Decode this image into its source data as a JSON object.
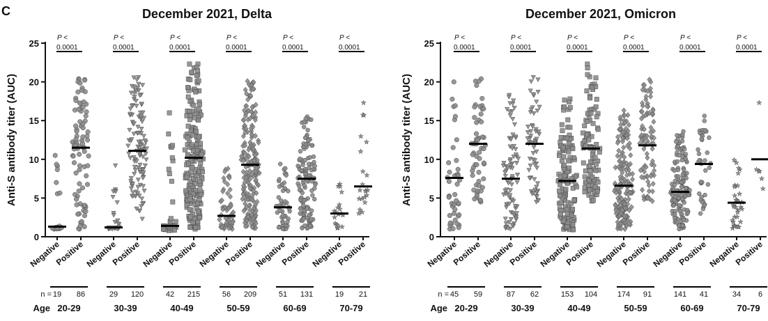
{
  "panel_letter": "C",
  "chart_data": [
    {
      "type": "scatter",
      "title": "December 2021, Delta",
      "ylabel": "Anti-S antibody titer (AUC)",
      "ylim": [
        0,
        25
      ],
      "yticks": [
        "0",
        "5",
        "10",
        "15",
        "20",
        "25"
      ],
      "categories": [
        "Negative",
        "Positive"
      ],
      "n_label": "n =",
      "age_label": "Age",
      "groups": [
        {
          "age": "20-29",
          "n": [
            "19",
            "86"
          ],
          "p_label": "P <",
          "p_value": "0.0001",
          "marker": "circle",
          "neg": {
            "min": 1.0,
            "max": 10.5,
            "median": 1.3,
            "count": 19
          },
          "pos": {
            "min": 1.0,
            "max": 20.4,
            "median": 11.5,
            "count": 86
          }
        },
        {
          "age": "30-39",
          "n": [
            "29",
            "120"
          ],
          "p_label": "P <",
          "p_value": "0.0001",
          "marker": "triangle-down",
          "neg": {
            "min": 1.0,
            "max": 9.2,
            "median": 1.2,
            "count": 29
          },
          "pos": {
            "min": 2.3,
            "max": 20.6,
            "median": 11.1,
            "count": 120
          }
        },
        {
          "age": "40-49",
          "n": [
            "42",
            "215"
          ],
          "p_label": "P <",
          "p_value": "0.0001",
          "marker": "square",
          "neg": {
            "min": 0.8,
            "max": 16.0,
            "median": 1.4,
            "count": 42
          },
          "pos": {
            "min": 1.0,
            "max": 22.3,
            "median": 10.2,
            "count": 215
          }
        },
        {
          "age": "50-59",
          "n": [
            "56",
            "209"
          ],
          "p_label": "P <",
          "p_value": "0.0001",
          "marker": "diamond",
          "neg": {
            "min": 1.0,
            "max": 8.8,
            "median": 2.7,
            "count": 56
          },
          "pos": {
            "min": 1.1,
            "max": 20.1,
            "median": 9.3,
            "count": 209
          }
        },
        {
          "age": "60-69",
          "n": [
            "51",
            "131"
          ],
          "p_label": "P <",
          "p_value": "0.0001",
          "marker": "hexagon",
          "neg": {
            "min": 1.0,
            "max": 9.4,
            "median": 3.8,
            "count": 51
          },
          "pos": {
            "min": 1.1,
            "max": 15.5,
            "median": 7.5,
            "count": 131
          }
        },
        {
          "age": "70-79",
          "n": [
            "19",
            "21"
          ],
          "p_label": "P <",
          "p_value": "0.0001",
          "marker": "star",
          "neg": {
            "min": 1.1,
            "max": 6.8,
            "median": 3.0,
            "count": 19
          },
          "pos": {
            "min": 3.0,
            "max": 17.3,
            "median": 6.5,
            "count": 21
          }
        }
      ]
    },
    {
      "type": "scatter",
      "title": "December 2021, Omicron",
      "ylabel": "Anti-S antibody titer (AUC)",
      "ylim": [
        0,
        25
      ],
      "yticks": [
        "0",
        "5",
        "10",
        "15",
        "20",
        "25"
      ],
      "categories": [
        "Negative",
        "Positive"
      ],
      "n_label": "n =",
      "age_label": "Age",
      "groups": [
        {
          "age": "20-29",
          "n": [
            "45",
            "59"
          ],
          "p_label": "P <",
          "p_value": "0.0001",
          "marker": "circle",
          "neg": {
            "min": 1.0,
            "max": 20.0,
            "median": 7.6,
            "count": 45
          },
          "pos": {
            "min": 4.5,
            "max": 20.4,
            "median": 12.0,
            "count": 59
          }
        },
        {
          "age": "30-39",
          "n": [
            "87",
            "62"
          ],
          "p_label": "P <",
          "p_value": "0.0001",
          "marker": "triangle-down",
          "neg": {
            "min": 1.0,
            "max": 18.3,
            "median": 7.5,
            "count": 87
          },
          "pos": {
            "min": 4.5,
            "max": 20.6,
            "median": 12.0,
            "count": 62
          }
        },
        {
          "age": "40-49",
          "n": [
            "153",
            "104"
          ],
          "p_label": "P <",
          "p_value": "0.0001",
          "marker": "square",
          "neg": {
            "min": 0.9,
            "max": 17.8,
            "median": 7.2,
            "count": 153
          },
          "pos": {
            "min": 4.6,
            "max": 22.3,
            "median": 11.4,
            "count": 104
          }
        },
        {
          "age": "50-59",
          "n": [
            "174",
            "91"
          ],
          "p_label": "P <",
          "p_value": "0.0001",
          "marker": "diamond",
          "neg": {
            "min": 1.0,
            "max": 16.3,
            "median": 6.6,
            "count": 174
          },
          "pos": {
            "min": 4.6,
            "max": 20.3,
            "median": 11.8,
            "count": 91
          }
        },
        {
          "age": "60-69",
          "n": [
            "141",
            "41"
          ],
          "p_label": "P <",
          "p_value": "0.0001",
          "marker": "hexagon",
          "neg": {
            "min": 1.0,
            "max": 13.6,
            "median": 5.8,
            "count": 141
          },
          "pos": {
            "min": 3.0,
            "max": 15.6,
            "median": 9.4,
            "count": 41
          }
        },
        {
          "age": "70-79",
          "n": [
            "34",
            "6"
          ],
          "p_label": "P <",
          "p_value": "0.0001",
          "marker": "star",
          "neg": {
            "min": 1.1,
            "max": 9.9,
            "median": 4.4,
            "count": 34
          },
          "pos": {
            "min": 6.2,
            "max": 17.3,
            "median": 10.0,
            "count": 6
          }
        }
      ]
    }
  ]
}
